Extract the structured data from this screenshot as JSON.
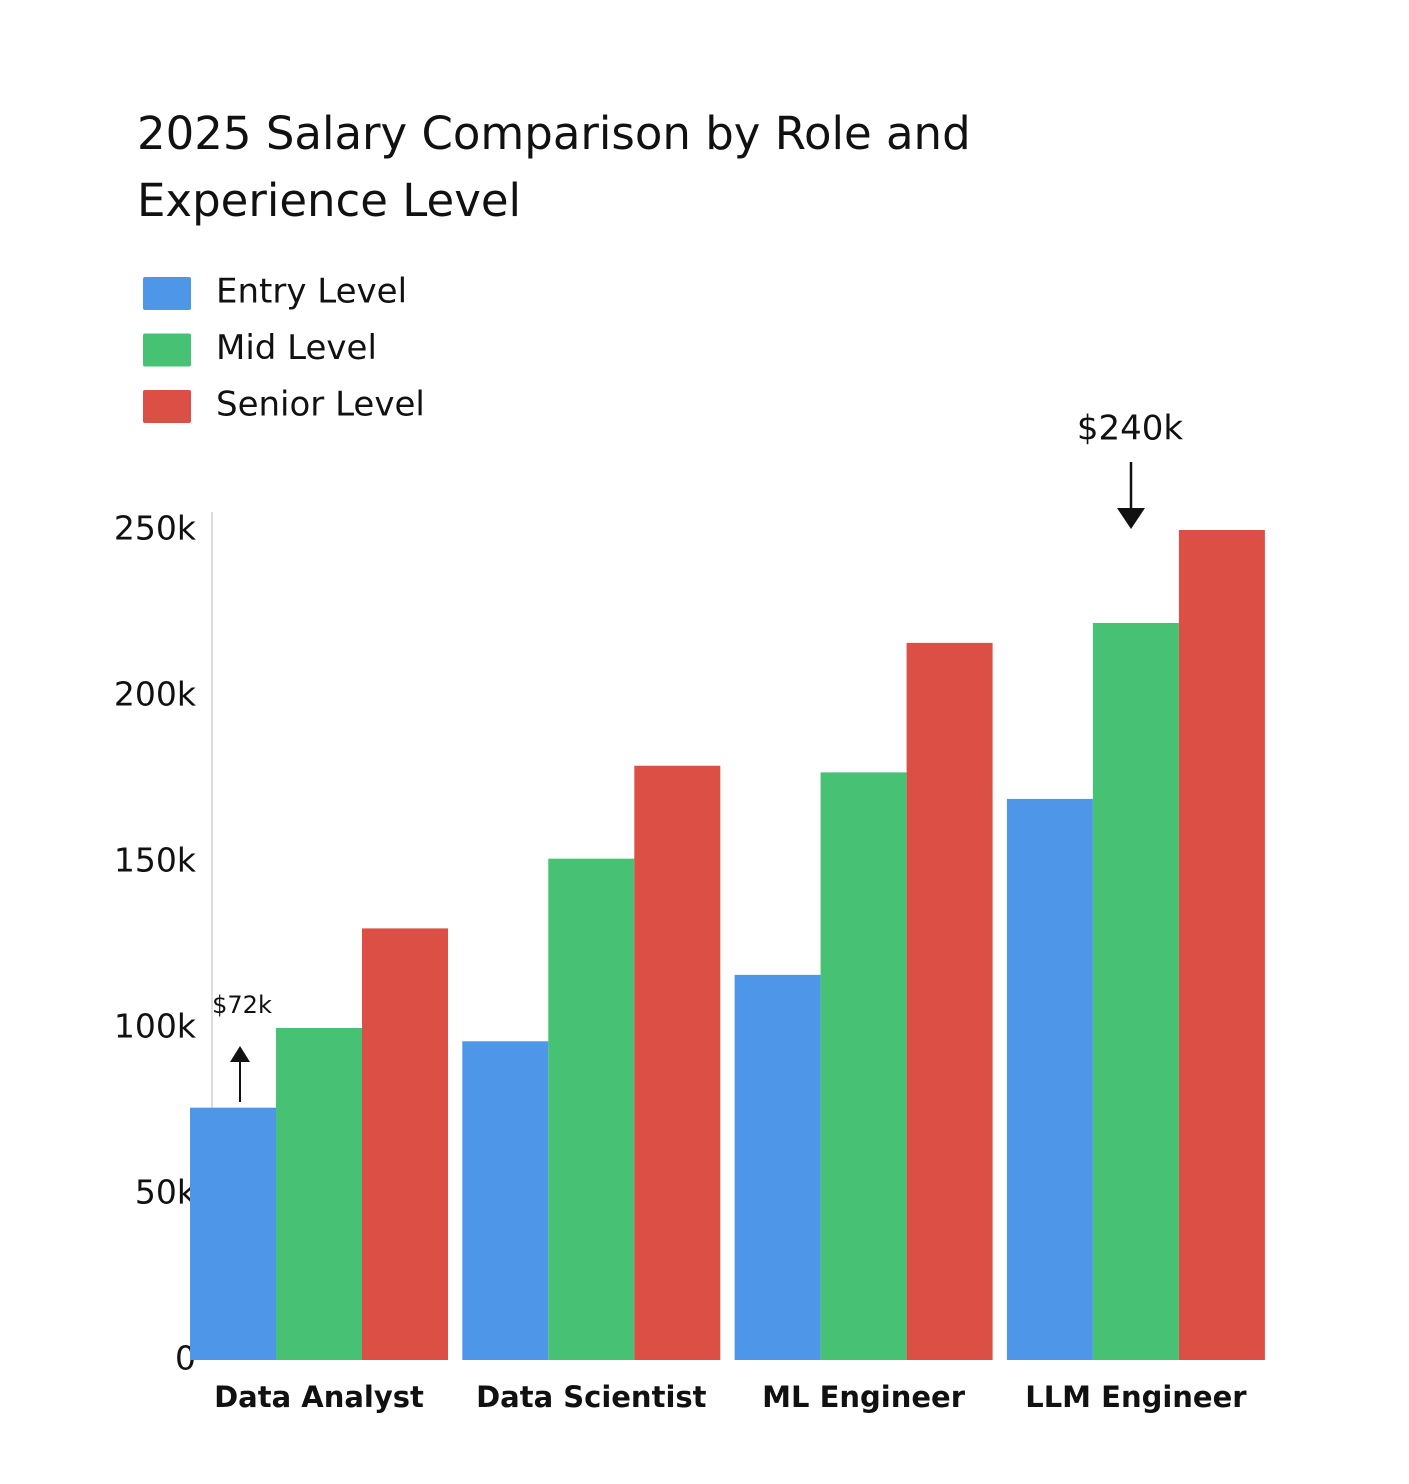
{
  "chart_data": {
    "type": "bar",
    "title": "2025 Salary Comparison by Role and Experience Level",
    "categories": [
      "Data Analyst",
      "Data Scientist",
      "ML Engineer",
      "LLM Engineer"
    ],
    "series": [
      {
        "name": "Entry Level",
        "color": "#4e96e8",
        "values": [
          76,
          96,
          116,
          169
        ]
      },
      {
        "name": "Mid Level",
        "color": "#47c173",
        "values": [
          100,
          151,
          177,
          222
        ]
      },
      {
        "name": "Senior Level",
        "color": "#db4f45",
        "values": [
          130,
          179,
          216,
          250
        ]
      }
    ],
    "ylim": [
      0,
      250
    ],
    "yticks": [
      0,
      {
        "value": 50,
        "label": "50k"
      },
      {
        "value": 100,
        "label": "100k"
      },
      {
        "value": 150,
        "label": "150k"
      },
      {
        "value": 200,
        "label": "200k"
      },
      {
        "value": 250,
        "label": "250k"
      }
    ],
    "legend": "top-left",
    "annotations": [
      {
        "text": "$72k"
      },
      {
        "text": "$240k"
      }
    ]
  }
}
